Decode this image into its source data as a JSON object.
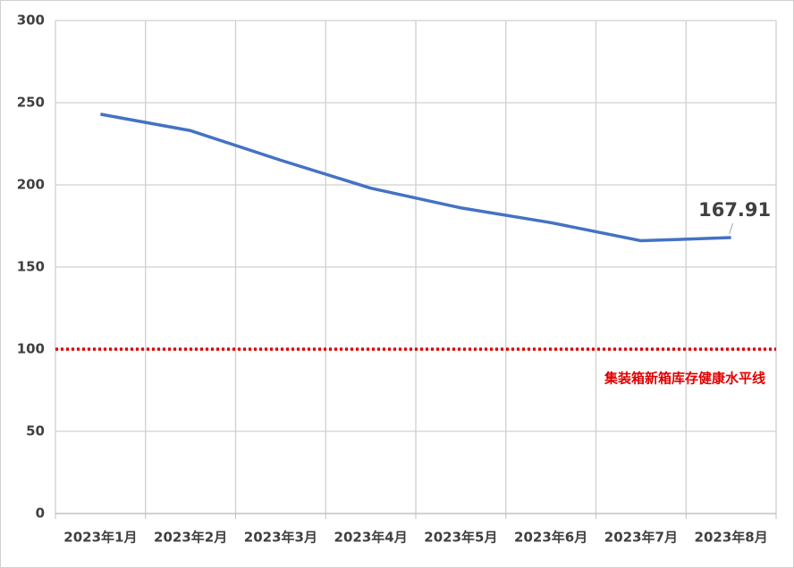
{
  "chart_data": {
    "type": "line",
    "categories": [
      "2023年1月",
      "2023年2月",
      "2023年3月",
      "2023年4月",
      "2023年5月",
      "2023年6月",
      "2023年7月",
      "2023年8月"
    ],
    "values": [
      243,
      233,
      215,
      198,
      186,
      177,
      166,
      167.91
    ],
    "value_labels": [
      null,
      null,
      null,
      null,
      null,
      null,
      null,
      "167.91"
    ],
    "color": "#4472c4",
    "ylim": [
      0,
      300
    ],
    "yticks": [
      0,
      50,
      100,
      150,
      200,
      250,
      300
    ],
    "grid": true,
    "reference_lines": [
      {
        "value": 100,
        "label": "集装箱新箱库存健康水平线",
        "color": "#e00000"
      }
    ]
  }
}
